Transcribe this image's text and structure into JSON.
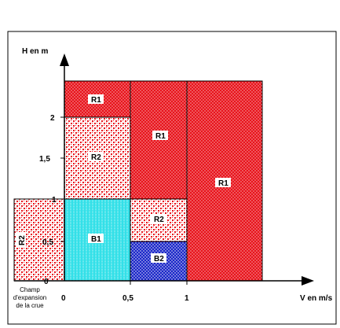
{
  "axes": {
    "y_label": "H en m",
    "x_label": "V en m/s",
    "y_ticks": [
      "0",
      "0,5",
      "1",
      "1,5",
      "2"
    ],
    "x_ticks": [
      "0",
      "0,5",
      "1"
    ]
  },
  "zones": {
    "r1_top": "R1",
    "r1_mid": "R1",
    "r1_right": "R1",
    "r2_upper": "R2",
    "r2_lower": "R2",
    "r2_left": "R2",
    "b1": "B1",
    "b2": "B2"
  },
  "flood_field": {
    "line1": "Champ",
    "line2": "d'expansion",
    "line3": "de la crue"
  },
  "colors": {
    "red": "#e8131b",
    "light_red_bg": "#f3c8c8",
    "cyan": "#33e0e8",
    "blue": "#1a26c8"
  }
}
